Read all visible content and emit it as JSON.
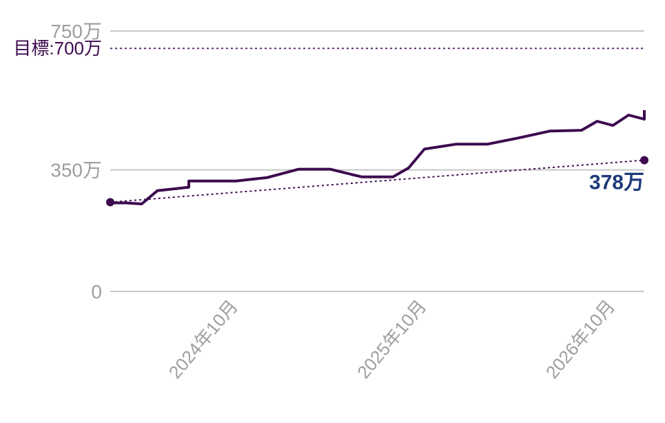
{
  "chart_data": {
    "type": "line",
    "y_ticks": [
      {
        "value": 0,
        "label": "0"
      },
      {
        "value": 350,
        "label": "350万"
      },
      {
        "value": 750,
        "label": "750万"
      }
    ],
    "ylim": [
      0,
      750
    ],
    "goal": {
      "value": 700,
      "label": "目標:700万"
    },
    "x_ticks": [
      {
        "value": "2024-10",
        "label": "2024年10月"
      },
      {
        "value": "2025-10",
        "label": "2025年10月"
      },
      {
        "value": "2026-10",
        "label": "2026年10月"
      }
    ],
    "xlim": [
      "2024-02",
      "2026-12"
    ],
    "series": [
      {
        "points": [
          [
            "2024-02",
            255
          ],
          [
            "2024-03",
            255
          ],
          [
            "2024-04",
            252
          ],
          [
            "2024-05",
            290
          ],
          [
            "2024-07",
            300
          ],
          [
            "2024-07",
            318
          ],
          [
            "2024-10",
            318
          ],
          [
            "2024-12",
            328
          ],
          [
            "2025-02",
            352
          ],
          [
            "2025-04",
            352
          ],
          [
            "2025-06",
            330
          ],
          [
            "2025-08",
            330
          ],
          [
            "2025-09",
            356
          ],
          [
            "2025-10",
            410
          ],
          [
            "2025-12",
            424
          ],
          [
            "2026-02",
            424
          ],
          [
            "2026-04",
            442
          ],
          [
            "2026-06",
            462
          ],
          [
            "2026-08",
            464
          ],
          [
            "2026-09",
            490
          ],
          [
            "2026-10",
            478
          ],
          [
            "2026-11",
            508
          ],
          [
            "2026-12",
            496
          ],
          [
            "2026-12",
            522
          ]
        ],
        "color": "#3d0a4f"
      },
      {
        "style": "dotted",
        "points": [
          [
            "2024-02",
            257
          ],
          [
            "2026-12",
            378
          ]
        ],
        "end_label": "378万",
        "color": "#3d0a4f"
      }
    ],
    "grid": true,
    "legend": "none"
  }
}
